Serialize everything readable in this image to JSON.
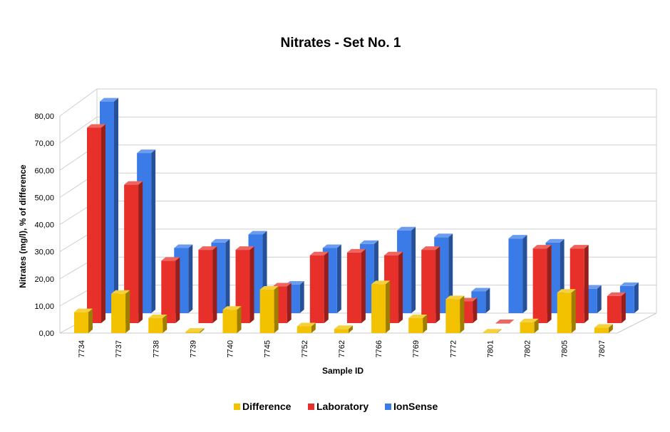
{
  "chart_data": {
    "type": "bar",
    "title": "Nitrates  - Set No. 1",
    "xlabel": "Sample ID",
    "ylabel": "Nitrates (mg/l), % of difference",
    "ylim": [
      0,
      80
    ],
    "yticks": [
      "0,00",
      "10,00",
      "20,00",
      "30,00",
      "40,00",
      "50,00",
      "60,00",
      "70,00",
      "80,00"
    ],
    "grid": true,
    "legend_position": "bottom",
    "categories": [
      "7734",
      "7737",
      "7738",
      "7739",
      "7740",
      "7745",
      "7752",
      "7762",
      "7766",
      "7769",
      "7772",
      "7801",
      "7802",
      "7805",
      "7807"
    ],
    "series": [
      {
        "name": "Difference",
        "color": "#f2c200",
        "values": [
          7.7,
          14.5,
          5.5,
          0.5,
          8.6,
          16.0,
          2.5,
          1.5,
          18.0,
          5.5,
          12.5,
          0.2,
          4.0,
          14.9,
          2.0
        ]
      },
      {
        "name": "Laboratory",
        "color": "#e8302a",
        "values": [
          72.0,
          51.0,
          23.0,
          27.0,
          27.0,
          13.5,
          25.0,
          26.0,
          25.0,
          27.0,
          8.0,
          0.0,
          27.5,
          27.5,
          10.0
        ]
      },
      {
        "name": "IonSense",
        "color": "#3a7be8",
        "values": [
          78.0,
          59.0,
          24.0,
          26.0,
          29.0,
          10.5,
          24.0,
          25.5,
          30.5,
          28.0,
          8.0,
          27.5,
          26.0,
          9.0,
          10.0
        ]
      }
    ]
  }
}
